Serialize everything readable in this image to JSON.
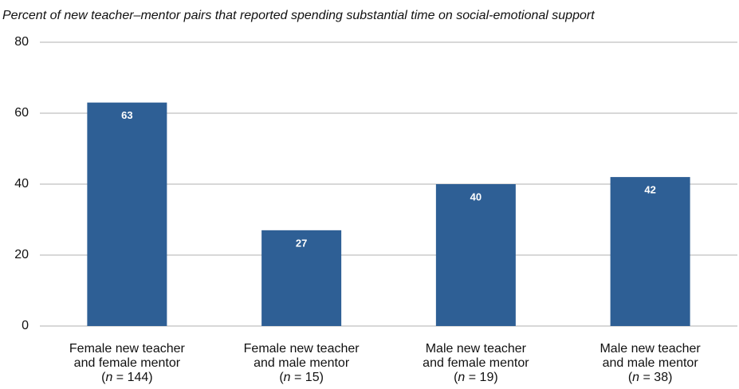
{
  "chart_data": {
    "type": "bar",
    "title": "Percent of new teacher–mentor pairs that reported spending substantial time on social-emotional support",
    "categories": [
      [
        "Female new teacher",
        "and female mentor",
        "(n = 144)"
      ],
      [
        "Female new teacher",
        "and male mentor",
        "(n = 15)"
      ],
      [
        "Male new teacher",
        "and female mentor",
        "(n = 19)"
      ],
      [
        "Male new teacher",
        "and male mentor",
        "(n = 38)"
      ]
    ],
    "values": [
      63,
      27,
      40,
      42
    ],
    "color": "#2e5f95",
    "ylim": [
      0,
      80
    ],
    "yticks": [
      0,
      20,
      40,
      60,
      80
    ],
    "grid": true
  }
}
